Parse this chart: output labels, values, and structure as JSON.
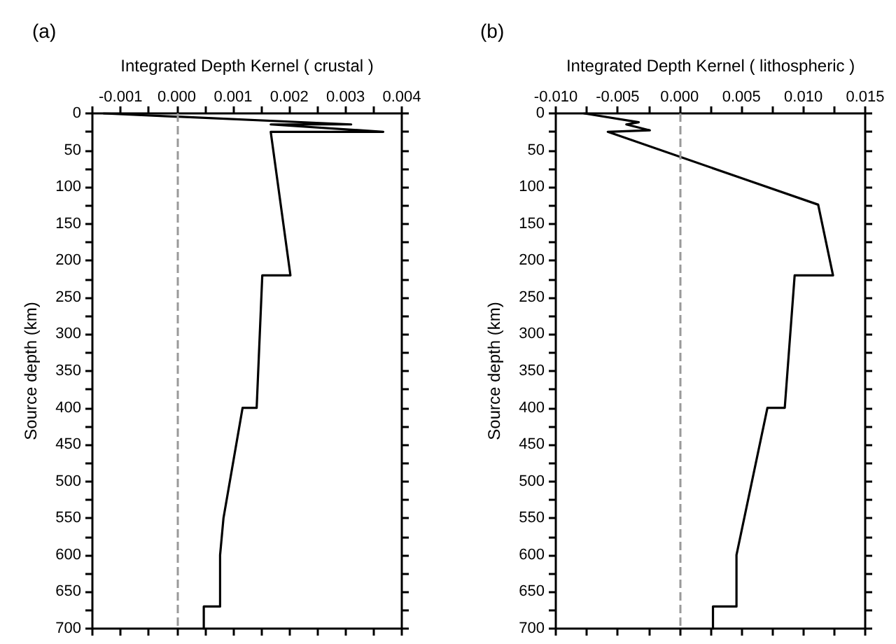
{
  "chart_data": [
    {
      "type": "line",
      "title": "(a)",
      "xlabel": "Integrated Depth Kernel ( crustal )",
      "ylabel": "Source depth (km)",
      "xlim": [
        -0.0015,
        0.004
      ],
      "xticks": [
        {
          "value": -0.0015,
          "label": null
        },
        {
          "value": -0.001,
          "label": "-0.001"
        },
        {
          "value": -0.0005,
          "label": null
        },
        {
          "value": 0,
          "label": "0.000"
        },
        {
          "value": 0.0005,
          "label": null
        },
        {
          "value": 0.001,
          "label": "0.001"
        },
        {
          "value": 0.0015,
          "label": null
        },
        {
          "value": 0.002,
          "label": "0.002"
        },
        {
          "value": 0.0025,
          "label": null
        },
        {
          "value": 0.003,
          "label": "0.003"
        },
        {
          "value": 0.0035,
          "label": null
        },
        {
          "value": 0.004,
          "label": "0.004"
        }
      ],
      "ylim": [
        700,
        0
      ],
      "yticks": [
        0,
        {
          "value": 25,
          "label": null
        },
        50,
        {
          "value": 75,
          "label": null
        },
        100,
        {
          "value": 125,
          "label": null
        },
        150,
        {
          "value": 175,
          "label": null
        },
        200,
        {
          "value": 225,
          "label": null
        },
        250,
        {
          "value": 275,
          "label": null
        },
        300,
        {
          "value": 325,
          "label": null
        },
        350,
        {
          "value": 375,
          "label": null
        },
        400,
        {
          "value": 425,
          "label": null
        },
        450,
        {
          "value": 475,
          "label": null
        },
        500,
        {
          "value": 525,
          "label": null
        },
        550,
        {
          "value": 575,
          "label": null
        },
        600,
        {
          "value": 625,
          "label": null
        },
        650,
        {
          "value": 675,
          "label": null
        },
        700
      ],
      "grid": false,
      "marker": "none",
      "line_style": "solid",
      "ref_lines": [
        {
          "axis": "x",
          "value": 0,
          "color": "#999999",
          "line_style": "dashed"
        }
      ],
      "series": [
        {
          "color": "#000000",
          "x": [
            -0.0013,
            0.0031,
            0.00167,
            0.00367,
            0.00167,
            0.00202,
            0.00152,
            0.00142,
            0.00117,
            0.00083,
            0.00077,
            0.00077,
            0.00048,
            0.00048
          ],
          "values": [
            0,
            15,
            15,
            25,
            25,
            220,
            220,
            400,
            400,
            550,
            600,
            670,
            670,
            700
          ]
        }
      ]
    },
    {
      "type": "line",
      "title": "(b)",
      "xlabel": "Integrated Depth Kernel ( lithospheric )",
      "ylabel": "Source depth (km)",
      "xlim": [
        -0.01,
        0.015
      ],
      "xticks": [
        {
          "value": -0.01,
          "label": "-0.010"
        },
        {
          "value": -0.0075,
          "label": null
        },
        {
          "value": -0.005,
          "label": "-0.005"
        },
        {
          "value": -0.0025,
          "label": null
        },
        {
          "value": 0,
          "label": "0.000"
        },
        {
          "value": 0.0025,
          "label": null
        },
        {
          "value": 0.005,
          "label": "0.005"
        },
        {
          "value": 0.0075,
          "label": null
        },
        {
          "value": 0.01,
          "label": "0.010"
        },
        {
          "value": 0.0125,
          "label": null
        },
        {
          "value": 0.015,
          "label": "0.015"
        }
      ],
      "ylim": [
        700,
        0
      ],
      "yticks": [
        0,
        {
          "value": 25,
          "label": null
        },
        50,
        {
          "value": 75,
          "label": null
        },
        100,
        {
          "value": 125,
          "label": null
        },
        150,
        {
          "value": 175,
          "label": null
        },
        200,
        {
          "value": 225,
          "label": null
        },
        250,
        {
          "value": 275,
          "label": null
        },
        300,
        {
          "value": 325,
          "label": null
        },
        350,
        {
          "value": 375,
          "label": null
        },
        400,
        {
          "value": 425,
          "label": null
        },
        450,
        {
          "value": 475,
          "label": null
        },
        500,
        {
          "value": 525,
          "label": null
        },
        550,
        {
          "value": 575,
          "label": null
        },
        600,
        {
          "value": 625,
          "label": null
        },
        650,
        {
          "value": 675,
          "label": null
        },
        700
      ],
      "grid": false,
      "marker": "none",
      "line_style": "solid",
      "ref_lines": [
        {
          "axis": "x",
          "value": 0,
          "color": "#999999",
          "line_style": "dashed"
        }
      ],
      "series": [
        {
          "color": "#000000",
          "x": [
            -0.0077,
            -0.0033,
            -0.0043,
            -0.0024,
            -0.0058,
            0.0112,
            0.0124,
            0.0093,
            0.0085,
            0.0071,
            0.0046,
            0.0046,
            0.0027,
            0.0027
          ],
          "values": [
            0,
            12,
            15,
            23,
            25,
            124,
            220,
            220,
            400,
            400,
            600,
            670,
            670,
            700
          ]
        }
      ]
    }
  ]
}
